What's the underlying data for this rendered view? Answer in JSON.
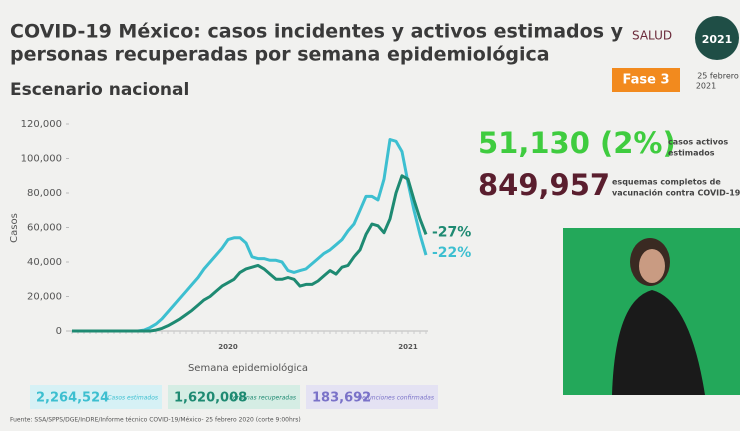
{
  "header": {
    "title_lines": [
      "COVID-19 México: casos incidentes y activos estimados y",
      "personas recuperadas por semana epidemiológica"
    ],
    "subtitle": "Escenario nacional",
    "logo": "SALUD",
    "badge": "2021",
    "phase": "Fase 3",
    "date_lines": [
      "25 febrero",
      "2021"
    ]
  },
  "stats": [
    {
      "value": "51,130 (2%)",
      "label_lines": [
        "casos activos",
        "estimados"
      ]
    },
    {
      "value": "849,957",
      "label_lines": [
        "esquemas completos de",
        "vacunación contra COVID-19"
      ]
    }
  ],
  "summary": [
    {
      "value": "2,264,524",
      "label": "Casos estimados"
    },
    {
      "value": "1,620,008",
      "label": "Personas recuperadas"
    },
    {
      "value": "183,692",
      "label": "Defunciones confirmadas"
    }
  ],
  "footer": "Fuente: SSA/SPPS/DGE/InDRE/Informe técnico COVID-19/México- 25 febrero 2020 (corte 9:00hrs)",
  "chart_data": {
    "type": "line",
    "y_label": "Casos",
    "x_label": "Semana epidemiológica",
    "categories": [
      null,
      null,
      null,
      null,
      null,
      null,
      null,
      null,
      null,
      null,
      null,
      null,
      null,
      null,
      null,
      null,
      null,
      null,
      null,
      null,
      null,
      null,
      null,
      null,
      null,
      null,
      "2020",
      null,
      null,
      null,
      null,
      null,
      null,
      null,
      null,
      null,
      null,
      null,
      null,
      null,
      null,
      null,
      null,
      null,
      null,
      null,
      null,
      null,
      null,
      null,
      null,
      null,
      null,
      null,
      null,
      null,
      "2021",
      null,
      null,
      null
    ],
    "series": [
      {
        "color": "#3dbfd0",
        "annotation": "-22%",
        "values": [
          0,
          0,
          0,
          0,
          0,
          0,
          0,
          0,
          0,
          0,
          0,
          0,
          500,
          2000,
          4000,
          7000,
          11000,
          15000,
          19000,
          23000,
          27000,
          31000,
          36000,
          40000,
          44000,
          48000,
          53000,
          54000,
          54000,
          51000,
          43000,
          42000,
          42000,
          41000,
          41000,
          40000,
          35000,
          34000,
          35000,
          36000,
          39000,
          42000,
          45000,
          47000,
          50000,
          53000,
          58000,
          62000,
          70000,
          78000,
          78000,
          76000,
          88000,
          111000,
          110000,
          104000,
          86000,
          70000,
          56000,
          44000
        ]
      },
      {
        "color": "#1e8a72",
        "annotation": "-27%",
        "values": [
          0,
          0,
          0,
          0,
          0,
          0,
          0,
          0,
          0,
          0,
          0,
          0,
          0,
          0,
          500,
          1500,
          3000,
          5000,
          7000,
          9500,
          12000,
          15000,
          18000,
          20000,
          23000,
          26000,
          28000,
          30000,
          34000,
          36000,
          37000,
          38000,
          36000,
          33000,
          30000,
          30000,
          31000,
          30000,
          26000,
          27000,
          27000,
          29000,
          32000,
          35000,
          33000,
          37000,
          38000,
          43000,
          47000,
          56000,
          62000,
          61000,
          57000,
          65000,
          80000,
          90000,
          88000,
          76000,
          65000,
          56000
        ]
      }
    ],
    "ylim": [
      0,
      120000
    ],
    "yticks": [
      0,
      {
        "value": 20000,
        "label": "20,000"
      },
      {
        "value": 40000,
        "label": "40,000"
      },
      {
        "value": 60000,
        "label": "60,000"
      },
      {
        "value": 80000,
        "label": "80,000"
      },
      {
        "value": 100000,
        "label": "100,000"
      },
      {
        "value": 120000,
        "label": "120,000"
      }
    ],
    "grid": false
  }
}
